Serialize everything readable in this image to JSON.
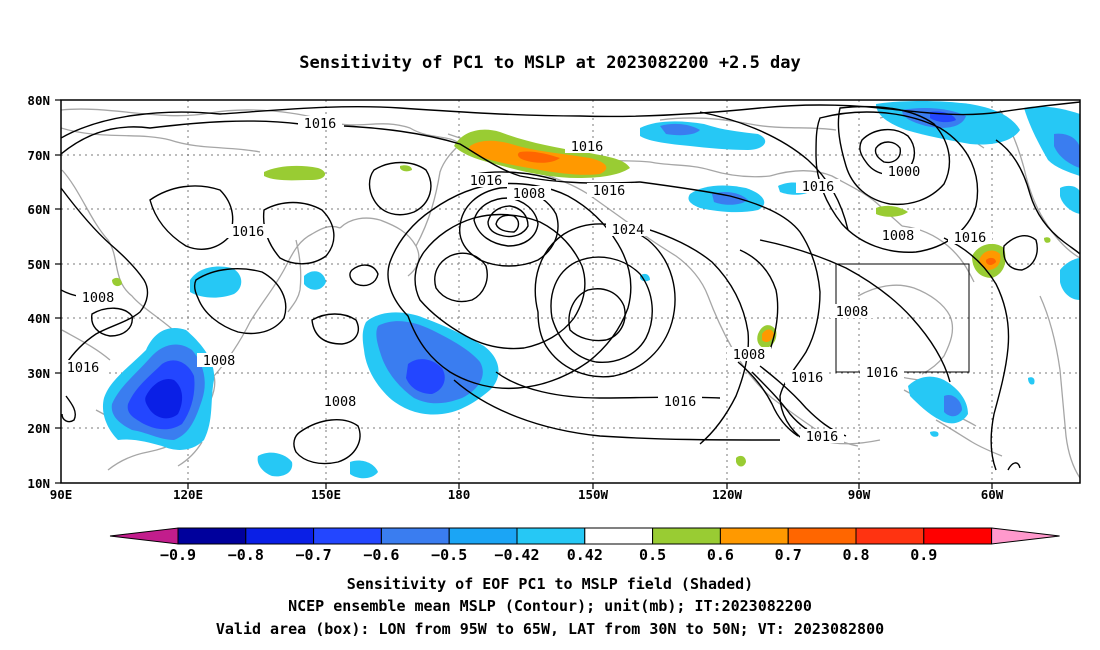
{
  "title": "Sensitivity of PC1 to MSLP at 2023082200 +2.5 day",
  "lat_labels": [
    "80N",
    "70N",
    "60N",
    "50N",
    "40N",
    "30N",
    "20N",
    "10N"
  ],
  "lon_labels": [
    "90E",
    "120E",
    "150E",
    "180",
    "150W",
    "120W",
    "90W",
    "60W"
  ],
  "contour_labels": [
    "1016",
    "1016",
    "1016",
    "1008",
    "1016",
    "1016",
    "1000",
    "1016",
    "1008",
    "1024",
    "1016",
    "1008",
    "1008",
    "1008",
    "1008",
    "1016",
    "1016",
    "1016",
    "1008",
    "1016",
    "1016"
  ],
  "colorbar": {
    "labels": [
      "-0.9",
      "-0.8",
      "-0.7",
      "-0.6",
      "-0.5",
      "-0.42",
      "0.42",
      "0.5",
      "0.6",
      "0.7",
      "0.8",
      "0.9"
    ],
    "colors": [
      "#c21d8c",
      "#00009c",
      "#0a1fe6",
      "#2346ff",
      "#3a7df0",
      "#1ba5f5",
      "#26c8f5",
      "#ffffff",
      "#99cc33",
      "#ff9900",
      "#ff6600",
      "#ff3311",
      "#ff0000",
      "#ff99cc"
    ]
  },
  "caption": {
    "line1": "Sensitivity of EOF PC1 to MSLP field (Shaded)",
    "line2": "NCEP ensemble mean MSLP (Contour); unit(mb); IT:2023082200",
    "line3": "Valid area (box): LON from 95W to 65W, LAT from 30N to 50N; VT: 2023082800"
  }
}
